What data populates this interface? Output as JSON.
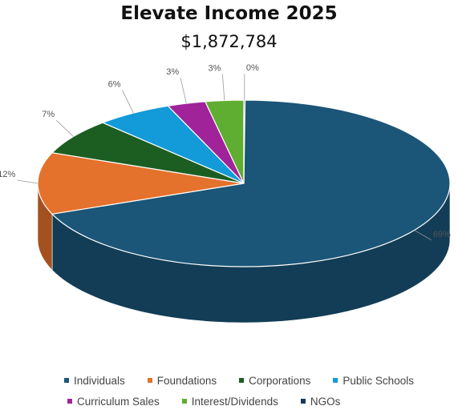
{
  "chart_data": {
    "type": "pie",
    "title": "Elevate Income 2025",
    "subtitle": "$1,872,784",
    "labels": [
      "Individuals",
      "Foundations",
      "Corporations",
      "Public Schools",
      "Curriculum Sales",
      "Interest/Dividends",
      "NGOs"
    ],
    "values": [
      69,
      12,
      7,
      6,
      3,
      3,
      0
    ],
    "value_labels": [
      "69%",
      "12%",
      "7%",
      "6%",
      "3%",
      "3%",
      "0%"
    ],
    "colors": [
      "#1b5577",
      "#e4712c",
      "#1c5e22",
      "#139ad8",
      "#a0239a",
      "#5fae32",
      "#163a5a"
    ],
    "legend_position": "bottom",
    "style": "3d"
  }
}
